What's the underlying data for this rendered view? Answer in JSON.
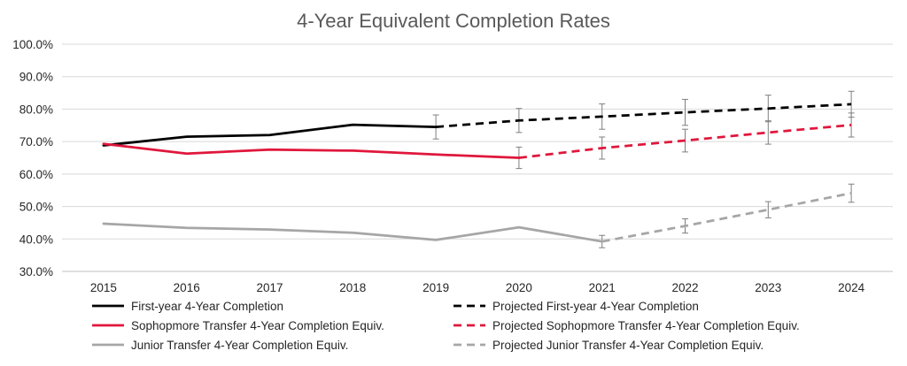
{
  "chart_data": {
    "type": "line",
    "title": "4-Year Equivalent Completion Rates",
    "xlabel": "",
    "ylabel": "",
    "categories": [
      "2015",
      "2016",
      "2017",
      "2018",
      "2019",
      "2020",
      "2021",
      "2022",
      "2023",
      "2024"
    ],
    "y_ticks": [
      "30.0%",
      "40.0%",
      "50.0%",
      "60.0%",
      "70.0%",
      "80.0%",
      "90.0%",
      "100.0%"
    ],
    "ylim": [
      30,
      100
    ],
    "grid": true,
    "legend_position": "bottom",
    "series": [
      {
        "name": "First-year 4-Year Completion",
        "color": "#000000",
        "dashed": false,
        "values": [
          68.8,
          71.5,
          72.0,
          75.2,
          74.5,
          null,
          null,
          null,
          null,
          null
        ]
      },
      {
        "name": "Projected First-year 4-Year Completion",
        "color": "#000000",
        "dashed": true,
        "values": [
          null,
          null,
          null,
          null,
          74.5,
          76.5,
          77.7,
          79.0,
          80.2,
          81.5
        ],
        "error": [
          null,
          null,
          null,
          null,
          3.7,
          3.7,
          3.9,
          4.0,
          4.1,
          4.0
        ]
      },
      {
        "name": "Sophopmore Transfer 4-Year Completion Equiv.",
        "color": "#e0173c",
        "dashed": false,
        "values": [
          69.3,
          66.3,
          67.5,
          67.2,
          66.0,
          65.0,
          null,
          null,
          null,
          null
        ]
      },
      {
        "name": "Projected Sophopmore Transfer 4-Year Completion Equiv.",
        "color": "#e0173c",
        "dashed": true,
        "values": [
          null,
          null,
          null,
          null,
          null,
          65.0,
          68.0,
          70.3,
          72.8,
          75.1
        ],
        "error": [
          null,
          null,
          null,
          null,
          null,
          3.3,
          3.4,
          3.5,
          3.6,
          3.7
        ]
      },
      {
        "name": "Junior Transfer 4-Year Completion Equiv.",
        "color": "#a6a6a6",
        "dashed": false,
        "values": [
          44.7,
          43.4,
          42.9,
          41.9,
          39.7,
          43.6,
          39.2,
          null,
          null,
          null
        ]
      },
      {
        "name": "Projected Junior Transfer 4-Year Completion Equiv.",
        "color": "#a6a6a6",
        "dashed": true,
        "values": [
          null,
          null,
          null,
          null,
          null,
          null,
          39.2,
          44.0,
          49.0,
          54.1
        ],
        "error": [
          null,
          null,
          null,
          null,
          null,
          null,
          1.9,
          2.2,
          2.5,
          2.8
        ]
      }
    ]
  }
}
